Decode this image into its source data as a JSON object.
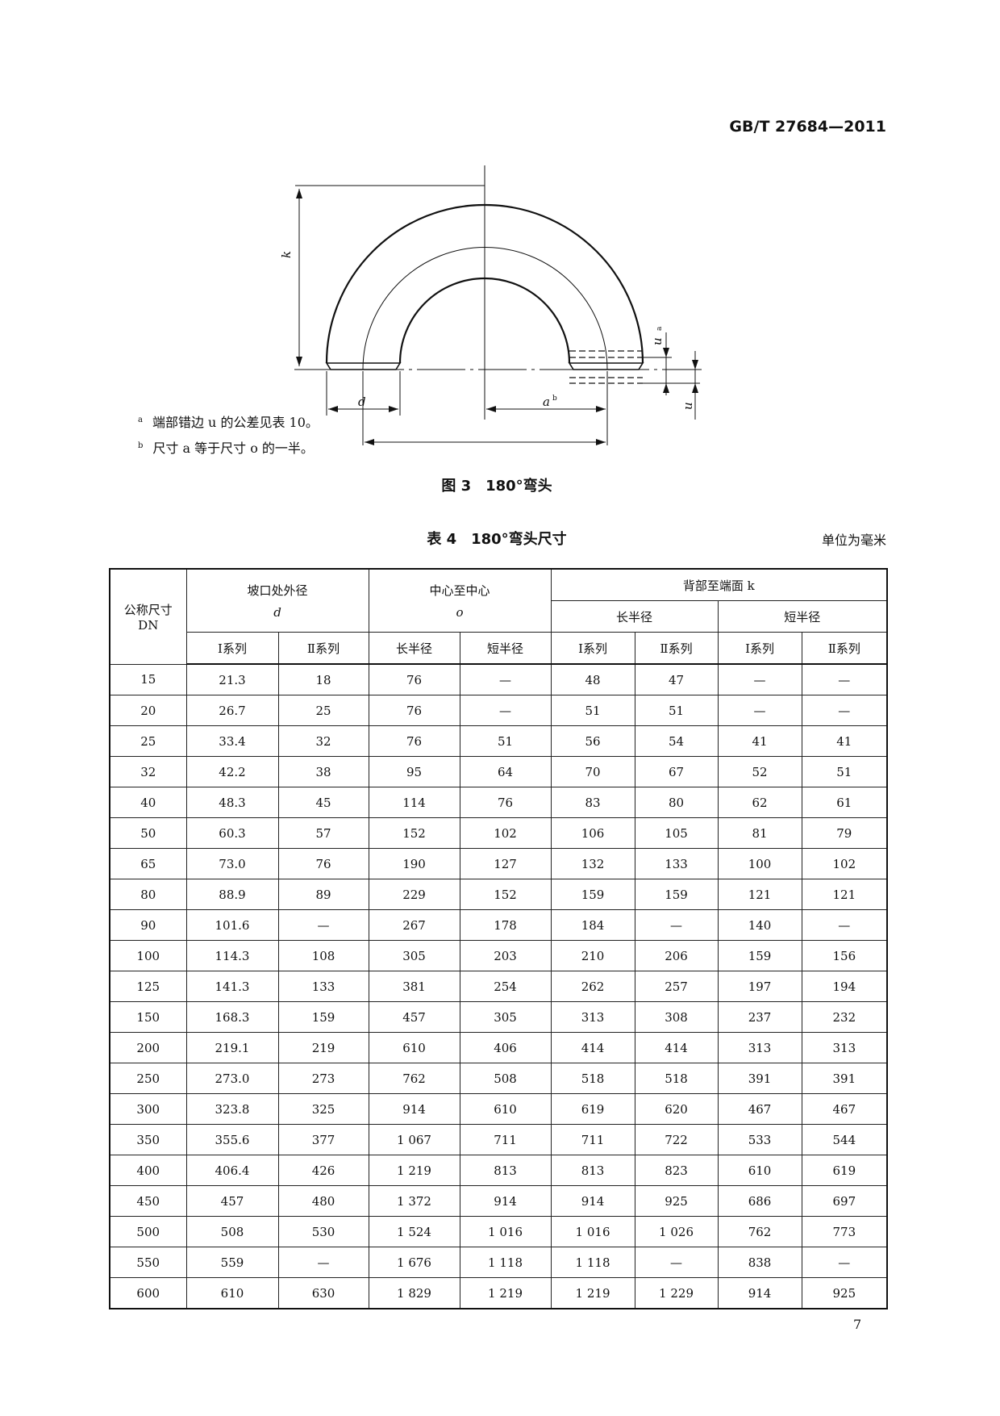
{
  "header": {
    "standard": "GB/T 27684—2011"
  },
  "figure": {
    "labels": {
      "k": "k",
      "d": "d",
      "a": "a",
      "a_sup": "b",
      "o": "o",
      "u1": "u",
      "u1_sup": "a",
      "u2": "u"
    },
    "footnotes": [
      {
        "mark": "a",
        "text": "端部错边 u 的公差见表 10。"
      },
      {
        "mark": "b",
        "text": "尺寸 a 等于尺寸 o 的一半。"
      }
    ],
    "caption": "图 3　180°弯头"
  },
  "table": {
    "caption": "表 4　180°弯头尺寸",
    "unit": "单位为毫米",
    "headers": {
      "dn": "公称尺寸",
      "dn2": "DN",
      "d": "坡口处外径",
      "d_sym": "d",
      "o": "中心至中心",
      "o_sym": "o",
      "k": "背部至端面 k",
      "long": "长半径",
      "short": "短半径",
      "sub": [
        "Ⅰ系列",
        "Ⅱ系列",
        "长半径",
        "短半径",
        "Ⅰ系列",
        "Ⅱ系列",
        "Ⅰ系列",
        "Ⅱ系列"
      ]
    },
    "rows": [
      [
        "15",
        "21.3",
        "18",
        "76",
        "—",
        "48",
        "47",
        "—",
        "—"
      ],
      [
        "20",
        "26.7",
        "25",
        "76",
        "—",
        "51",
        "51",
        "—",
        "—"
      ],
      [
        "25",
        "33.4",
        "32",
        "76",
        "51",
        "56",
        "54",
        "41",
        "41"
      ],
      [
        "32",
        "42.2",
        "38",
        "95",
        "64",
        "70",
        "67",
        "52",
        "51"
      ],
      [
        "40",
        "48.3",
        "45",
        "114",
        "76",
        "83",
        "80",
        "62",
        "61"
      ],
      [
        "50",
        "60.3",
        "57",
        "152",
        "102",
        "106",
        "105",
        "81",
        "79"
      ],
      [
        "65",
        "73.0",
        "76",
        "190",
        "127",
        "132",
        "133",
        "100",
        "102"
      ],
      [
        "80",
        "88.9",
        "89",
        "229",
        "152",
        "159",
        "159",
        "121",
        "121"
      ],
      [
        "90",
        "101.6",
        "—",
        "267",
        "178",
        "184",
        "—",
        "140",
        "—"
      ],
      [
        "100",
        "114.3",
        "108",
        "305",
        "203",
        "210",
        "206",
        "159",
        "156"
      ],
      [
        "125",
        "141.3",
        "133",
        "381",
        "254",
        "262",
        "257",
        "197",
        "194"
      ],
      [
        "150",
        "168.3",
        "159",
        "457",
        "305",
        "313",
        "308",
        "237",
        "232"
      ],
      [
        "200",
        "219.1",
        "219",
        "610",
        "406",
        "414",
        "414",
        "313",
        "313"
      ],
      [
        "250",
        "273.0",
        "273",
        "762",
        "508",
        "518",
        "518",
        "391",
        "391"
      ],
      [
        "300",
        "323.8",
        "325",
        "914",
        "610",
        "619",
        "620",
        "467",
        "467"
      ],
      [
        "350",
        "355.6",
        "377",
        "1 067",
        "711",
        "711",
        "722",
        "533",
        "544"
      ],
      [
        "400",
        "406.4",
        "426",
        "1 219",
        "813",
        "813",
        "823",
        "610",
        "619"
      ],
      [
        "450",
        "457",
        "480",
        "1 372",
        "914",
        "914",
        "925",
        "686",
        "697"
      ],
      [
        "500",
        "508",
        "530",
        "1 524",
        "1 016",
        "1 016",
        "1 026",
        "762",
        "773"
      ],
      [
        "550",
        "559",
        "—",
        "1 676",
        "1 118",
        "1 118",
        "—",
        "838",
        "—"
      ],
      [
        "600",
        "610",
        "630",
        "1 829",
        "1 219",
        "1 219",
        "1 229",
        "914",
        "925"
      ]
    ]
  },
  "footer": {
    "page_number": "7"
  }
}
